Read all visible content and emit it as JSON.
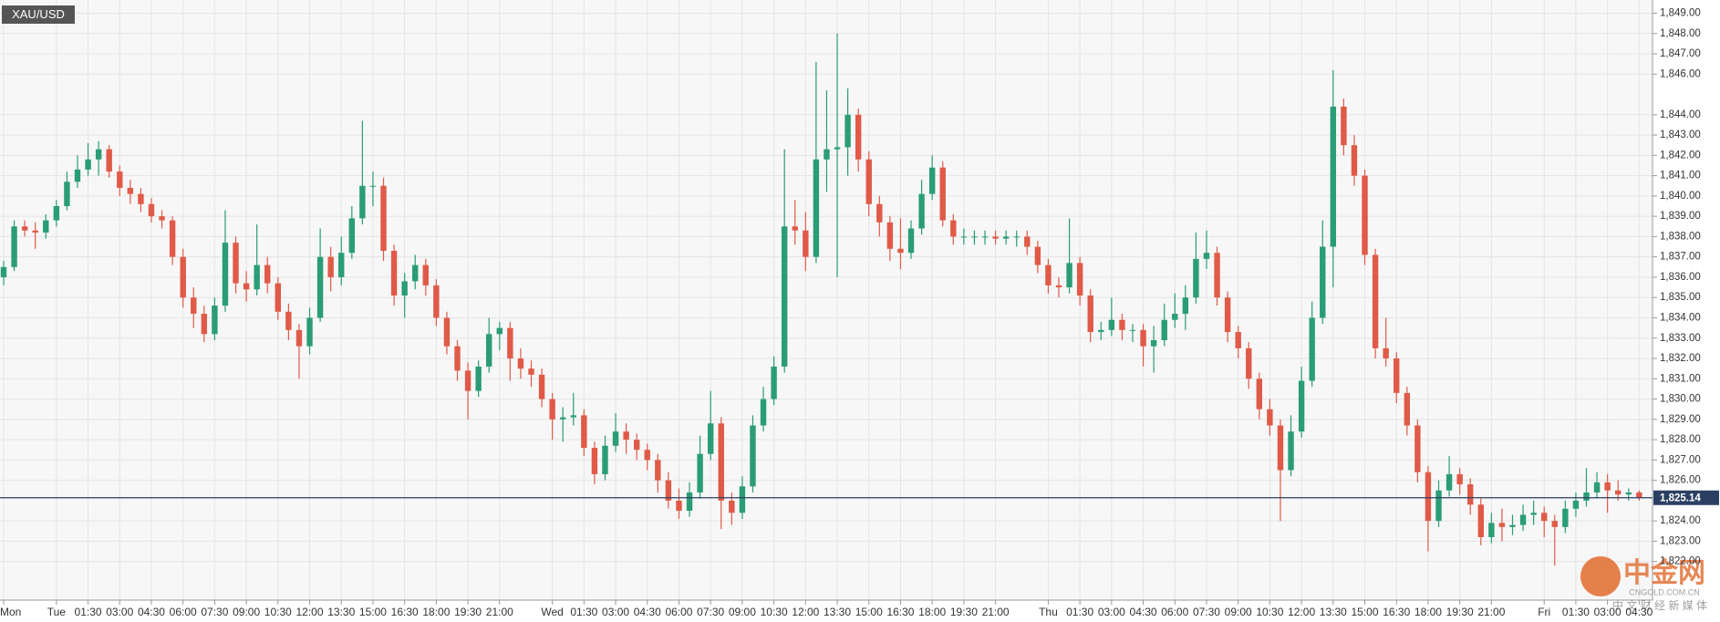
{
  "chart_data": {
    "type": "candlestick",
    "symbol": "XAU/USD",
    "up_color": "#2a9d74",
    "down_color": "#e05a48",
    "grid": true,
    "ylim": [
      1820.1,
      1849.65
    ],
    "yticks": [
      {
        "value": 1822,
        "label": "1,822.00"
      },
      {
        "value": 1823,
        "label": "1,823.00"
      },
      {
        "value": 1824,
        "label": "1,824.00"
      },
      {
        "value": 1826,
        "label": "1,826.00"
      },
      {
        "value": 1827,
        "label": "1,827.00"
      },
      {
        "value": 1828,
        "label": "1,828.00"
      },
      {
        "value": 1829,
        "label": "1,829.00"
      },
      {
        "value": 1830,
        "label": "1,830.00"
      },
      {
        "value": 1831,
        "label": "1,831.00"
      },
      {
        "value": 1832,
        "label": "1,832.00"
      },
      {
        "value": 1833,
        "label": "1,833.00"
      },
      {
        "value": 1834,
        "label": "1,834.00"
      },
      {
        "value": 1835,
        "label": "1,835.00"
      },
      {
        "value": 1836,
        "label": "1,836.00"
      },
      {
        "value": 1837,
        "label": "1,837.00"
      },
      {
        "value": 1838,
        "label": "1,838.00"
      },
      {
        "value": 1839,
        "label": "1,839.00"
      },
      {
        "value": 1840,
        "label": "1,840.00"
      },
      {
        "value": 1841,
        "label": "1,841.00"
      },
      {
        "value": 1842,
        "label": "1,842.00"
      },
      {
        "value": 1843,
        "label": "1,843.00"
      },
      {
        "value": 1844,
        "label": "1,844.00"
      },
      {
        "value": 1846,
        "label": "1,846.00"
      },
      {
        "value": 1847,
        "label": "1,847.00"
      },
      {
        "value": 1848,
        "label": "1,848.00"
      },
      {
        "value": 1849,
        "label": "1,849.00"
      }
    ],
    "last_price": {
      "value": 1825.14,
      "label": "1,825.14"
    },
    "watermark": {
      "logo": "中金网",
      "site": "CNGOLD.COM.CN",
      "slogan": "中 文 财 经 新 媒 体"
    },
    "categories": [
      "Mon",
      null,
      null,
      null,
      null,
      "Tue",
      null,
      null,
      "01:30",
      null,
      null,
      "03:00",
      null,
      null,
      "04:30",
      null,
      null,
      "06:00",
      null,
      null,
      "07:30",
      null,
      null,
      "09:00",
      null,
      null,
      "10:30",
      null,
      null,
      "12:00",
      null,
      null,
      "13:30",
      null,
      null,
      "15:00",
      null,
      null,
      "16:30",
      null,
      null,
      "18:00",
      null,
      null,
      "19:30",
      null,
      null,
      "21:00",
      null,
      null,
      null,
      null,
      "Wed",
      null,
      null,
      "01:30",
      null,
      null,
      "03:00",
      null,
      null,
      "04:30",
      null,
      null,
      "06:00",
      null,
      null,
      "07:30",
      null,
      null,
      "09:00",
      null,
      null,
      "10:30",
      null,
      null,
      "12:00",
      null,
      null,
      "13:30",
      null,
      null,
      "15:00",
      null,
      null,
      "16:30",
      null,
      null,
      "18:00",
      null,
      null,
      "19:30",
      null,
      null,
      "21:00",
      null,
      null,
      null,
      null,
      "Thu",
      null,
      null,
      "01:30",
      null,
      null,
      "03:00",
      null,
      null,
      "04:30",
      null,
      null,
      "06:00",
      null,
      null,
      "07:30",
      null,
      null,
      "09:00",
      null,
      null,
      "10:30",
      null,
      null,
      "12:00",
      null,
      null,
      "13:30",
      null,
      null,
      "15:00",
      null,
      null,
      "16:30",
      null,
      null,
      "18:00",
      null,
      null,
      "19:30",
      null,
      null,
      "21:00",
      null,
      null,
      null,
      null,
      "Fri",
      null,
      null,
      "01:30",
      null,
      null,
      "03:00",
      null,
      null,
      "04:30"
    ],
    "candles": [
      [
        1836.0,
        1836.8,
        1835.6,
        1836.5
      ],
      [
        1836.5,
        1838.8,
        1836.3,
        1838.5
      ],
      [
        1838.5,
        1838.8,
        1838.0,
        1838.3
      ],
      [
        1838.3,
        1838.7,
        1837.4,
        1838.2
      ],
      [
        1838.2,
        1839.1,
        1837.9,
        1838.8
      ],
      [
        1838.8,
        1839.8,
        1838.5,
        1839.5
      ],
      [
        1839.5,
        1841.2,
        1839.3,
        1840.7
      ],
      [
        1840.7,
        1842.0,
        1840.4,
        1841.3
      ],
      [
        1841.3,
        1842.6,
        1841.0,
        1841.8
      ],
      [
        1841.8,
        1842.7,
        1841.0,
        1842.3
      ],
      [
        1842.3,
        1842.5,
        1840.9,
        1841.2
      ],
      [
        1841.2,
        1841.5,
        1840.0,
        1840.4
      ],
      [
        1840.4,
        1840.8,
        1839.6,
        1840.1
      ],
      [
        1840.1,
        1840.4,
        1839.2,
        1839.6
      ],
      [
        1839.6,
        1839.9,
        1838.7,
        1839.0
      ],
      [
        1839.0,
        1839.3,
        1838.4,
        1838.8
      ],
      [
        1838.8,
        1839.0,
        1836.6,
        1837.0
      ],
      [
        1837.0,
        1837.4,
        1834.5,
        1835.0
      ],
      [
        1835.0,
        1835.5,
        1833.5,
        1834.2
      ],
      [
        1834.2,
        1834.6,
        1832.8,
        1833.2
      ],
      [
        1833.2,
        1835.0,
        1832.9,
        1834.6
      ],
      [
        1834.6,
        1839.3,
        1834.3,
        1837.7
      ],
      [
        1837.7,
        1838.0,
        1835.2,
        1835.7
      ],
      [
        1835.7,
        1836.3,
        1834.8,
        1835.4
      ],
      [
        1835.4,
        1838.6,
        1835.1,
        1836.6
      ],
      [
        1836.6,
        1837.0,
        1835.2,
        1835.7
      ],
      [
        1835.7,
        1836.0,
        1833.9,
        1834.3
      ],
      [
        1834.3,
        1834.7,
        1832.9,
        1833.4
      ],
      [
        1833.4,
        1833.7,
        1831.0,
        1832.6
      ],
      [
        1832.6,
        1834.5,
        1832.2,
        1834.0
      ],
      [
        1834.0,
        1838.4,
        1833.8,
        1837.0
      ],
      [
        1837.0,
        1837.5,
        1835.3,
        1836.0
      ],
      [
        1836.0,
        1838.0,
        1835.6,
        1837.2
      ],
      [
        1837.2,
        1839.5,
        1836.9,
        1838.9
      ],
      [
        1838.9,
        1843.7,
        1838.6,
        1840.5
      ],
      [
        1840.5,
        1841.2,
        1839.5,
        1840.5
      ],
      [
        1840.5,
        1840.9,
        1836.8,
        1837.3
      ],
      [
        1837.3,
        1837.6,
        1834.6,
        1835.1
      ],
      [
        1835.1,
        1836.2,
        1834.0,
        1835.8
      ],
      [
        1835.8,
        1837.1,
        1835.4,
        1836.6
      ],
      [
        1836.6,
        1836.9,
        1835.1,
        1835.6
      ],
      [
        1835.6,
        1835.9,
        1833.6,
        1834.0
      ],
      [
        1834.0,
        1834.3,
        1832.2,
        1832.6
      ],
      [
        1832.6,
        1832.9,
        1830.9,
        1831.4
      ],
      [
        1831.4,
        1831.8,
        1829.0,
        1830.4
      ],
      [
        1830.4,
        1831.9,
        1830.1,
        1831.6
      ],
      [
        1831.6,
        1834.0,
        1831.3,
        1833.2
      ],
      [
        1833.2,
        1833.8,
        1832.4,
        1833.5
      ],
      [
        1833.5,
        1833.8,
        1830.9,
        1832.0
      ],
      [
        1832.0,
        1832.5,
        1831.0,
        1831.5
      ],
      [
        1831.5,
        1831.9,
        1830.6,
        1831.2
      ],
      [
        1831.2,
        1831.5,
        1829.6,
        1830.0
      ],
      [
        1830.0,
        1830.3,
        1828.0,
        1829.0
      ],
      [
        1829.0,
        1829.6,
        1827.9,
        1829.1
      ],
      [
        1829.1,
        1830.3,
        1828.7,
        1829.2
      ],
      [
        1829.2,
        1829.5,
        1827.2,
        1827.6
      ],
      [
        1827.6,
        1827.9,
        1825.8,
        1826.3
      ],
      [
        1826.3,
        1828.2,
        1826.0,
        1827.7
      ],
      [
        1827.7,
        1829.3,
        1827.4,
        1828.4
      ],
      [
        1828.4,
        1828.8,
        1827.3,
        1828.0
      ],
      [
        1828.0,
        1828.3,
        1827.0,
        1827.5
      ],
      [
        1827.5,
        1827.8,
        1826.5,
        1827.0
      ],
      [
        1827.0,
        1827.3,
        1825.4,
        1826.0
      ],
      [
        1826.0,
        1826.4,
        1824.6,
        1825.0
      ],
      [
        1825.0,
        1825.6,
        1824.1,
        1824.5
      ],
      [
        1824.5,
        1825.9,
        1824.2,
        1825.4
      ],
      [
        1825.4,
        1828.2,
        1825.1,
        1827.3
      ],
      [
        1827.3,
        1830.4,
        1827.0,
        1828.8
      ],
      [
        1828.8,
        1829.1,
        1823.6,
        1825.0
      ],
      [
        1825.0,
        1825.4,
        1823.8,
        1824.4
      ],
      [
        1824.4,
        1826.2,
        1824.1,
        1825.7
      ],
      [
        1825.7,
        1829.2,
        1825.4,
        1828.7
      ],
      [
        1828.7,
        1830.6,
        1828.4,
        1830.0
      ],
      [
        1830.0,
        1832.1,
        1829.7,
        1831.6
      ],
      [
        1831.6,
        1842.3,
        1831.3,
        1838.5
      ],
      [
        1838.5,
        1839.8,
        1837.6,
        1838.3
      ],
      [
        1838.3,
        1839.2,
        1836.3,
        1837.0
      ],
      [
        1837.0,
        1846.6,
        1836.7,
        1841.8
      ],
      [
        1841.8,
        1845.2,
        1840.2,
        1842.3
      ],
      [
        1842.3,
        1848.0,
        1836.0,
        1842.4
      ],
      [
        1842.4,
        1845.3,
        1841.0,
        1844.0
      ],
      [
        1844.0,
        1844.3,
        1841.2,
        1841.8
      ],
      [
        1841.8,
        1842.2,
        1839.0,
        1839.6
      ],
      [
        1839.6,
        1840.0,
        1838.0,
        1838.7
      ],
      [
        1838.7,
        1839.0,
        1836.8,
        1837.4
      ],
      [
        1837.4,
        1838.9,
        1836.4,
        1837.2
      ],
      [
        1837.2,
        1838.8,
        1836.9,
        1838.4
      ],
      [
        1838.4,
        1840.8,
        1838.1,
        1840.1
      ],
      [
        1840.1,
        1842.0,
        1839.8,
        1841.4
      ],
      [
        1841.4,
        1841.7,
        1838.5,
        1838.8
      ],
      [
        1838.8,
        1839.1,
        1837.6,
        1838.0
      ],
      [
        1838.0,
        1838.4,
        1837.6,
        1838.0
      ],
      [
        1838.0,
        1838.3,
        1837.6,
        1838.0
      ],
      [
        1838.0,
        1838.3,
        1837.6,
        1838.0
      ],
      [
        1838.0,
        1838.3,
        1837.6,
        1837.9
      ],
      [
        1837.9,
        1838.3,
        1837.6,
        1838.0
      ],
      [
        1838.0,
        1838.3,
        1837.5,
        1838.0
      ],
      [
        1838.0,
        1838.3,
        1837.1,
        1837.5
      ],
      [
        1837.5,
        1837.8,
        1836.2,
        1836.6
      ],
      [
        1836.6,
        1836.9,
        1835.2,
        1835.6
      ],
      [
        1835.6,
        1836.0,
        1835.0,
        1835.5
      ],
      [
        1835.5,
        1838.9,
        1835.2,
        1836.7
      ],
      [
        1836.7,
        1837.0,
        1834.6,
        1835.1
      ],
      [
        1835.1,
        1835.4,
        1832.8,
        1833.3
      ],
      [
        1833.3,
        1833.8,
        1832.9,
        1833.4
      ],
      [
        1833.4,
        1835.0,
        1833.1,
        1833.9
      ],
      [
        1833.9,
        1834.2,
        1832.9,
        1833.4
      ],
      [
        1833.4,
        1833.7,
        1832.8,
        1833.4
      ],
      [
        1833.4,
        1833.7,
        1831.6,
        1832.6
      ],
      [
        1832.6,
        1833.6,
        1831.3,
        1832.9
      ],
      [
        1832.9,
        1834.7,
        1832.6,
        1833.9
      ],
      [
        1833.9,
        1835.2,
        1833.5,
        1834.2
      ],
      [
        1834.2,
        1835.6,
        1833.4,
        1835.0
      ],
      [
        1835.0,
        1838.2,
        1834.7,
        1836.9
      ],
      [
        1836.9,
        1838.3,
        1836.4,
        1837.2
      ],
      [
        1837.2,
        1837.5,
        1834.6,
        1835.0
      ],
      [
        1835.0,
        1835.3,
        1832.8,
        1833.3
      ],
      [
        1833.3,
        1833.6,
        1832.0,
        1832.5
      ],
      [
        1832.5,
        1832.8,
        1830.5,
        1831.0
      ],
      [
        1831.0,
        1831.3,
        1829.0,
        1829.5
      ],
      [
        1829.5,
        1830.0,
        1828.2,
        1828.7
      ],
      [
        1828.7,
        1829.0,
        1824.0,
        1826.5
      ],
      [
        1826.5,
        1829.2,
        1826.2,
        1828.4
      ],
      [
        1828.4,
        1831.6,
        1828.1,
        1830.9
      ],
      [
        1830.9,
        1834.8,
        1830.6,
        1834.0
      ],
      [
        1834.0,
        1838.8,
        1833.7,
        1837.5
      ],
      [
        1837.5,
        1846.2,
        1835.5,
        1844.4
      ],
      [
        1844.4,
        1844.8,
        1842.0,
        1842.5
      ],
      [
        1842.5,
        1843.0,
        1840.5,
        1841.0
      ],
      [
        1841.0,
        1841.3,
        1836.6,
        1837.1
      ],
      [
        1837.1,
        1837.4,
        1832.0,
        1832.5
      ],
      [
        1832.5,
        1834.0,
        1831.6,
        1832.0
      ],
      [
        1832.0,
        1832.3,
        1829.8,
        1830.3
      ],
      [
        1830.3,
        1830.6,
        1828.2,
        1828.7
      ],
      [
        1828.7,
        1829.0,
        1825.9,
        1826.4
      ],
      [
        1826.4,
        1826.7,
        1822.5,
        1824.0
      ],
      [
        1824.0,
        1826.0,
        1823.7,
        1825.5
      ],
      [
        1825.5,
        1827.2,
        1825.2,
        1826.3
      ],
      [
        1826.3,
        1826.6,
        1825.3,
        1825.8
      ],
      [
        1825.8,
        1826.1,
        1824.3,
        1824.8
      ],
      [
        1824.8,
        1825.1,
        1822.8,
        1823.2
      ],
      [
        1823.2,
        1824.4,
        1822.9,
        1823.9
      ],
      [
        1823.9,
        1824.6,
        1823.0,
        1823.7
      ],
      [
        1823.7,
        1824.3,
        1823.3,
        1823.8
      ],
      [
        1823.8,
        1824.8,
        1823.5,
        1824.3
      ],
      [
        1824.3,
        1825.0,
        1823.8,
        1824.4
      ],
      [
        1824.4,
        1824.7,
        1823.2,
        1824.0
      ],
      [
        1824.0,
        1824.3,
        1821.8,
        1823.7
      ],
      [
        1823.7,
        1825.0,
        1823.4,
        1824.6
      ],
      [
        1824.6,
        1825.4,
        1824.2,
        1825.0
      ],
      [
        1825.0,
        1826.6,
        1824.7,
        1825.4
      ],
      [
        1825.4,
        1826.4,
        1825.1,
        1825.9
      ],
      [
        1825.9,
        1826.3,
        1824.4,
        1825.5
      ],
      [
        1825.5,
        1826.0,
        1825.0,
        1825.3
      ],
      [
        1825.3,
        1825.6,
        1825.0,
        1825.4
      ],
      [
        1825.4,
        1825.5,
        1825.0,
        1825.14
      ]
    ]
  }
}
